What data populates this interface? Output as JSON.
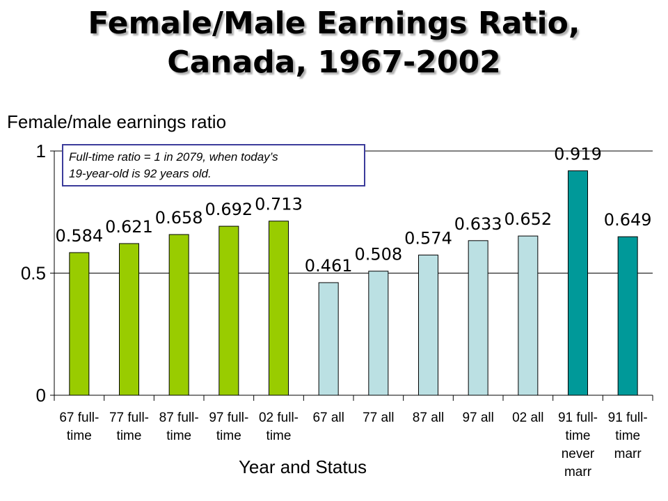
{
  "title_lines": [
    "Female/Male Earnings Ratio,",
    "Canada, 1967-2002"
  ],
  "note_lines": [
    "Full-time ratio = 1 in 2079, when today’s",
    "19-year-old is 92 years old."
  ],
  "chart_data": {
    "type": "bar",
    "ylabel": "Female/male earnings ratio",
    "xlabel": "Year and Status",
    "ylim": [
      0,
      1
    ],
    "yticks": [
      0,
      0.5,
      1
    ],
    "ytick_labels": [
      "0",
      "0.5",
      "1"
    ],
    "grid": true,
    "categories": [
      [
        "67 full-",
        "time"
      ],
      [
        "77 full-",
        "time"
      ],
      [
        "87 full-",
        "time"
      ],
      [
        "97 full-",
        "time"
      ],
      [
        "02 full-",
        "time"
      ],
      [
        "67 all"
      ],
      [
        "77 all"
      ],
      [
        "87 all"
      ],
      [
        "97 all"
      ],
      [
        "02 all"
      ],
      [
        "91 full-",
        "time",
        "never",
        "marr"
      ],
      [
        "91 full-",
        "time",
        "marr"
      ]
    ],
    "values": [
      0.584,
      0.621,
      0.658,
      0.692,
      0.713,
      0.461,
      0.508,
      0.574,
      0.633,
      0.652,
      0.919,
      0.649
    ],
    "value_labels": [
      "0.584",
      "0.621",
      "0.658",
      "0.692",
      "0.713",
      "0.461",
      "0.508",
      "0.574",
      "0.633",
      "0.652",
      "0.919",
      "0.649"
    ],
    "colors": [
      "#99cc00",
      "#99cc00",
      "#99cc00",
      "#99cc00",
      "#99cc00",
      "#bbe0e3",
      "#bbe0e3",
      "#bbe0e3",
      "#bbe0e3",
      "#bbe0e3",
      "#009999",
      "#009999"
    ]
  }
}
